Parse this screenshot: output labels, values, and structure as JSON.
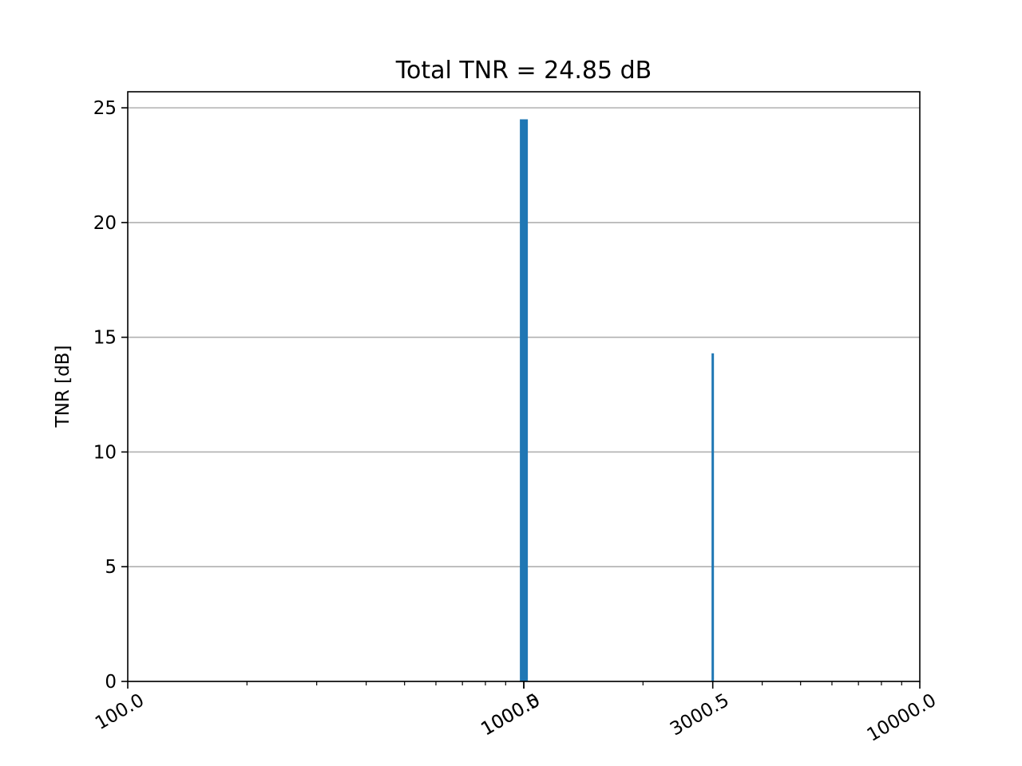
{
  "chart_data": {
    "type": "bar",
    "title": "Total TNR = 24.85 dB",
    "xlabel": "",
    "ylabel": "TNR [dB]",
    "x_scale": "log",
    "xlim": [
      100.0,
      10000.0
    ],
    "ylim": [
      0,
      25.7
    ],
    "x_ticks": [
      {
        "value": 100.0,
        "label": "100.0"
      },
      {
        "value": 1000.0,
        "label": "1000.0"
      },
      {
        "value": 1000.5,
        "label": "1000.5"
      },
      {
        "value": 3000.5,
        "label": "3000.5"
      },
      {
        "value": 10000.0,
        "label": "10000.0"
      }
    ],
    "y_ticks": [
      0,
      5,
      10,
      15,
      20,
      25
    ],
    "grid": "y",
    "bars": [
      {
        "x": 1000.5,
        "value": 24.5,
        "width": 20
      },
      {
        "x": 3000.5,
        "value": 14.3,
        "width": 6
      }
    ],
    "color": "#1f77b4"
  }
}
